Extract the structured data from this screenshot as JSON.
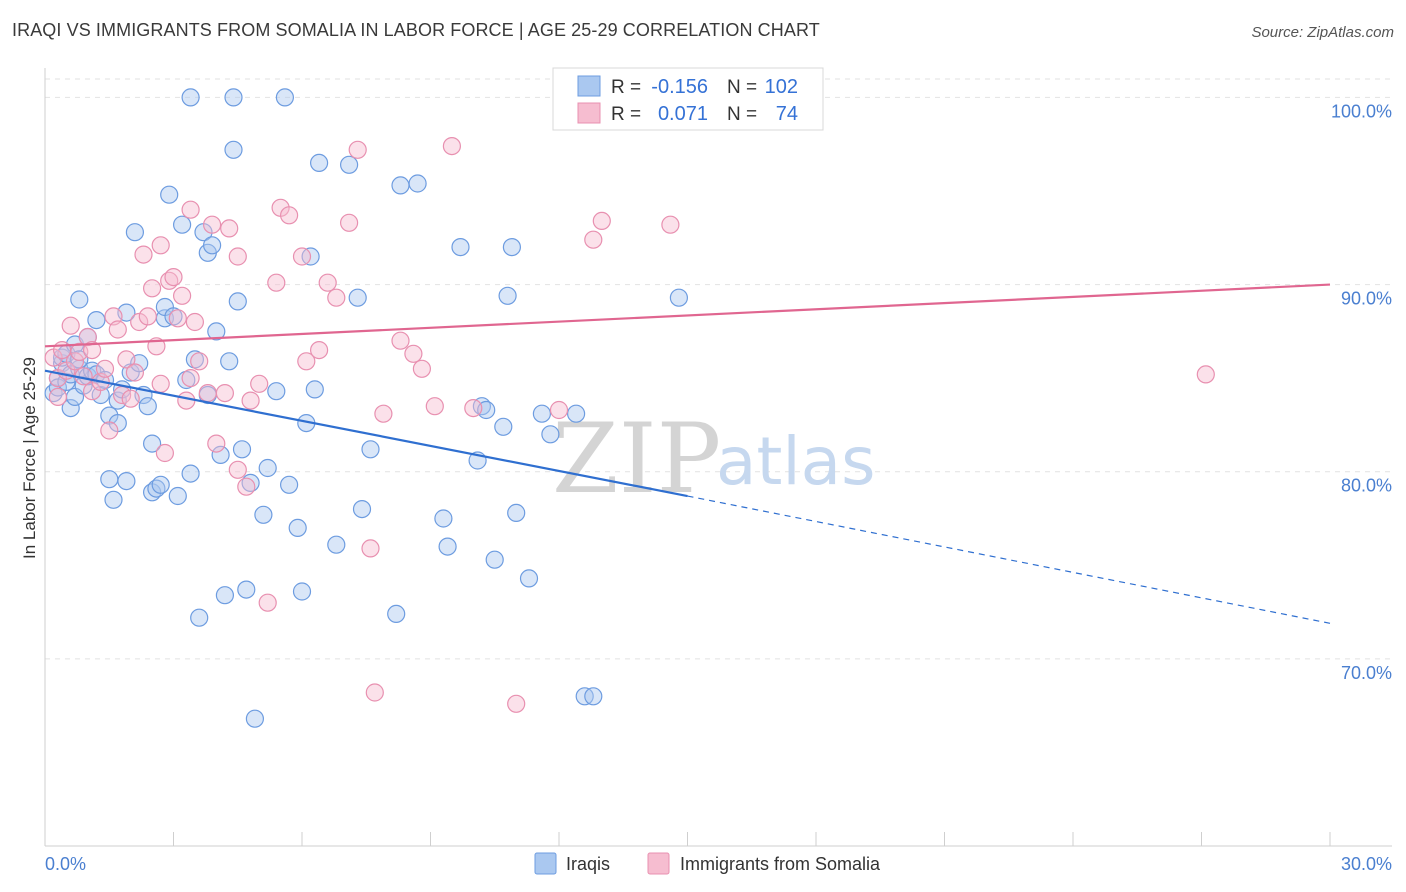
{
  "title": "IRAQI VS IMMIGRANTS FROM SOMALIA IN LABOR FORCE | AGE 25-29 CORRELATION CHART",
  "source": "Source: ZipAtlas.com",
  "watermark": {
    "zip": "ZIP",
    "atlas": "atlas"
  },
  "stats": {
    "r_label": "R =",
    "n_label": "N =",
    "rows": [
      {
        "r": "-0.156",
        "n": "102",
        "fill": "#aac8f0",
        "stroke": "#6d9ce0"
      },
      {
        "r": "0.071",
        "n": "74",
        "fill": "#f6bdd0",
        "stroke": "#e890b0"
      }
    ]
  },
  "chart_data": {
    "type": "scatter",
    "title": "IRAQI VS IMMIGRANTS FROM SOMALIA IN LABOR FORCE | AGE 25-29 CORRELATION CHART",
    "xlabel": "",
    "ylabel": "In Labor Force | Age 25-29",
    "xlim": [
      0,
      30
    ],
    "ylim": [
      60,
      102
    ],
    "x_tick_labels": [
      "0.0%",
      "30.0%"
    ],
    "y_ticks": [
      70,
      80,
      90,
      100
    ],
    "y_tick_labels": [
      "70.0%",
      "80.0%",
      "90.0%",
      "100.0%"
    ],
    "grid": true,
    "legend_position": "bottom",
    "series": [
      {
        "name": "Iraqis",
        "color": "#6d9ce0",
        "fill": "#aac8f0",
        "trend": {
          "x0": 0,
          "y0": 85.4,
          "x1": 15,
          "y1": 78.7,
          "dash_x1": 30,
          "dash_y1": 71.9,
          "color": "#2f6fd0"
        },
        "points": [
          [
            0.2,
            84.2
          ],
          [
            0.3,
            85.0
          ],
          [
            0.3,
            84.5
          ],
          [
            0.4,
            85.8
          ],
          [
            0.4,
            86.1
          ],
          [
            0.5,
            84.8
          ],
          [
            0.5,
            86.3
          ],
          [
            0.6,
            85.2
          ],
          [
            0.6,
            83.4
          ],
          [
            0.7,
            84.0
          ],
          [
            0.7,
            86.8
          ],
          [
            0.8,
            85.5
          ],
          [
            0.8,
            86.0
          ],
          [
            0.9,
            84.6
          ],
          [
            1.0,
            85.1
          ],
          [
            1.0,
            87.2
          ],
          [
            1.1,
            85.4
          ],
          [
            1.2,
            88.1
          ],
          [
            1.2,
            85.2
          ],
          [
            1.3,
            84.1
          ],
          [
            1.4,
            84.9
          ],
          [
            1.5,
            83.0
          ],
          [
            1.5,
            79.6
          ],
          [
            1.6,
            78.5
          ],
          [
            1.7,
            82.6
          ],
          [
            1.7,
            83.8
          ],
          [
            1.8,
            84.4
          ],
          [
            1.9,
            88.5
          ],
          [
            1.9,
            79.5
          ],
          [
            2.0,
            85.3
          ],
          [
            2.1,
            92.8
          ],
          [
            2.2,
            85.8
          ],
          [
            2.3,
            84.1
          ],
          [
            2.4,
            83.5
          ],
          [
            2.5,
            81.5
          ],
          [
            2.5,
            78.9
          ],
          [
            2.6,
            79.1
          ],
          [
            2.7,
            79.3
          ],
          [
            2.8,
            88.2
          ],
          [
            2.8,
            88.8
          ],
          [
            2.9,
            94.8
          ],
          [
            3.0,
            88.3
          ],
          [
            3.1,
            78.7
          ],
          [
            3.2,
            93.2
          ],
          [
            3.3,
            84.9
          ],
          [
            3.4,
            79.9
          ],
          [
            3.5,
            86.0
          ],
          [
            3.6,
            72.2
          ],
          [
            3.7,
            92.8
          ],
          [
            3.8,
            84.1
          ],
          [
            3.8,
            91.7
          ],
          [
            3.9,
            92.1
          ],
          [
            4.0,
            87.5
          ],
          [
            4.1,
            80.9
          ],
          [
            4.2,
            73.4
          ],
          [
            4.3,
            85.9
          ],
          [
            4.4,
            97.2
          ],
          [
            4.5,
            89.1
          ],
          [
            4.6,
            81.2
          ],
          [
            4.7,
            73.7
          ],
          [
            4.8,
            79.4
          ],
          [
            4.9,
            66.8
          ],
          [
            5.1,
            77.7
          ],
          [
            5.2,
            80.2
          ],
          [
            5.4,
            84.3
          ],
          [
            5.7,
            79.3
          ],
          [
            5.9,
            77.0
          ],
          [
            6.0,
            73.6
          ],
          [
            6.1,
            82.6
          ],
          [
            6.2,
            91.5
          ],
          [
            6.3,
            84.4
          ],
          [
            6.4,
            96.5
          ],
          [
            6.8,
            76.1
          ],
          [
            7.1,
            96.4
          ],
          [
            7.3,
            89.3
          ],
          [
            7.4,
            78.0
          ],
          [
            7.6,
            81.2
          ],
          [
            8.2,
            72.4
          ],
          [
            8.3,
            95.3
          ],
          [
            8.7,
            95.4
          ],
          [
            9.3,
            77.5
          ],
          [
            9.4,
            76.0
          ],
          [
            9.7,
            92.0
          ],
          [
            10.1,
            80.6
          ],
          [
            10.2,
            83.5
          ],
          [
            10.5,
            75.3
          ],
          [
            11.0,
            77.8
          ],
          [
            11.3,
            74.3
          ],
          [
            11.6,
            83.1
          ],
          [
            12.4,
            83.1
          ],
          [
            12.6,
            68.0
          ],
          [
            12.8,
            68.0
          ],
          [
            10.7,
            82.4
          ],
          [
            11.8,
            82.0
          ],
          [
            10.8,
            89.4
          ],
          [
            10.3,
            83.3
          ],
          [
            3.4,
            100.0
          ],
          [
            4.4,
            100.0
          ],
          [
            0.8,
            89.2
          ],
          [
            5.6,
            100.0
          ],
          [
            10.9,
            92.0
          ],
          [
            14.8,
            89.3
          ]
        ]
      },
      {
        "name": "Immigrants from Somalia",
        "color": "#e890b0",
        "fill": "#f6bdd0",
        "trend": {
          "x0": 0,
          "y0": 86.7,
          "x1": 30,
          "y1": 90.0,
          "color": "#e06690"
        },
        "points": [
          [
            0.2,
            86.1
          ],
          [
            0.3,
            85.0
          ],
          [
            0.3,
            84.0
          ],
          [
            0.4,
            86.5
          ],
          [
            0.5,
            85.4
          ],
          [
            0.6,
            87.8
          ],
          [
            0.7,
            85.9
          ],
          [
            0.8,
            86.4
          ],
          [
            0.9,
            85.1
          ],
          [
            1.0,
            87.2
          ],
          [
            1.1,
            86.5
          ],
          [
            1.1,
            84.3
          ],
          [
            1.3,
            84.8
          ],
          [
            1.4,
            85.5
          ],
          [
            1.5,
            82.2
          ],
          [
            1.6,
            88.3
          ],
          [
            1.7,
            87.6
          ],
          [
            1.8,
            84.1
          ],
          [
            1.9,
            86.0
          ],
          [
            2.0,
            83.9
          ],
          [
            2.1,
            85.3
          ],
          [
            2.2,
            88.0
          ],
          [
            2.3,
            91.6
          ],
          [
            2.4,
            88.3
          ],
          [
            2.5,
            89.8
          ],
          [
            2.6,
            86.7
          ],
          [
            2.7,
            84.7
          ],
          [
            2.7,
            92.1
          ],
          [
            2.8,
            81.0
          ],
          [
            2.9,
            90.2
          ],
          [
            3.0,
            90.4
          ],
          [
            3.1,
            88.2
          ],
          [
            3.2,
            89.4
          ],
          [
            3.3,
            83.8
          ],
          [
            3.4,
            85.0
          ],
          [
            3.4,
            94.0
          ],
          [
            3.5,
            88.0
          ],
          [
            3.6,
            85.9
          ],
          [
            3.8,
            84.2
          ],
          [
            3.9,
            93.2
          ],
          [
            4.0,
            81.5
          ],
          [
            4.2,
            84.2
          ],
          [
            4.3,
            93.0
          ],
          [
            4.5,
            91.5
          ],
          [
            4.5,
            80.1
          ],
          [
            4.7,
            79.2
          ],
          [
            4.8,
            83.8
          ],
          [
            5.0,
            84.7
          ],
          [
            5.2,
            73.0
          ],
          [
            5.4,
            90.1
          ],
          [
            5.5,
            94.1
          ],
          [
            5.7,
            93.7
          ],
          [
            6.0,
            91.5
          ],
          [
            6.1,
            85.9
          ],
          [
            6.4,
            86.5
          ],
          [
            6.6,
            90.1
          ],
          [
            6.8,
            89.3
          ],
          [
            7.1,
            93.3
          ],
          [
            7.3,
            97.2
          ],
          [
            7.6,
            75.9
          ],
          [
            7.7,
            68.2
          ],
          [
            7.9,
            83.1
          ],
          [
            8.3,
            87.0
          ],
          [
            8.6,
            86.3
          ],
          [
            8.8,
            85.5
          ],
          [
            9.1,
            83.5
          ],
          [
            9.5,
            97.4
          ],
          [
            10.0,
            83.4
          ],
          [
            11.0,
            67.6
          ],
          [
            12.0,
            83.3
          ],
          [
            12.8,
            92.4
          ],
          [
            13.0,
            93.4
          ],
          [
            14.6,
            93.2
          ],
          [
            27.1,
            85.2
          ]
        ]
      }
    ]
  },
  "legend": [
    {
      "label": "Iraqis",
      "fill": "#aac8f0",
      "stroke": "#6d9ce0"
    },
    {
      "label": "Immigrants from Somalia",
      "fill": "#f6bdd0",
      "stroke": "#e890b0"
    }
  ]
}
